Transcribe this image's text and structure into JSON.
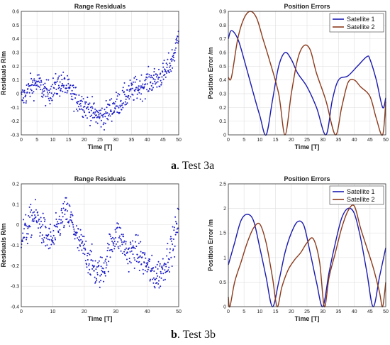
{
  "chart_data": [
    {
      "type": "scatter",
      "title": "Range Residuals",
      "xlabel": "Time [T]",
      "ylabel": "Residuals R/m",
      "xlim": [
        0,
        50
      ],
      "ylim": [
        -0.3,
        0.6
      ],
      "xticks": [
        "0",
        "5",
        "10",
        "15",
        "20",
        "25",
        "30",
        "35",
        "40",
        "45",
        "50"
      ],
      "yticks": [
        "-0.3",
        "-0.2",
        "-0.1",
        "0",
        "0.1",
        "0.2",
        "0.3",
        "0.4",
        "0.5",
        "0.6"
      ],
      "grid": true,
      "marker_color": "#1b1bc8",
      "trend": {
        "x": [
          0,
          3,
          5,
          8,
          11,
          13,
          15,
          18,
          20,
          22,
          24,
          26,
          28,
          30,
          32,
          34,
          36,
          38,
          40,
          42,
          44,
          46,
          48,
          49.5,
          50
        ],
        "y": [
          -0.04,
          0.05,
          0.08,
          0.0,
          0.05,
          0.08,
          0.03,
          -0.05,
          -0.08,
          -0.12,
          -0.16,
          -0.17,
          -0.12,
          -0.08,
          -0.05,
          0.0,
          0.03,
          0.05,
          0.08,
          0.1,
          0.12,
          0.16,
          0.25,
          0.37,
          0.45
        ]
      },
      "noise": 0.045
    },
    {
      "type": "line",
      "title": "Position Errors",
      "xlabel": "Time [T]",
      "ylabel": "Position Error /m",
      "xlim": [
        0,
        50
      ],
      "ylim": [
        0,
        0.9
      ],
      "xticks": [
        "0",
        "5",
        "10",
        "15",
        "20",
        "25",
        "30",
        "35",
        "40",
        "45",
        "50"
      ],
      "yticks": [
        "0",
        "0.1",
        "0.2",
        "0.3",
        "0.4",
        "0.5",
        "0.6",
        "0.7",
        "0.8",
        "0.9"
      ],
      "grid": true,
      "legend_position": "top-right",
      "series": [
        {
          "name": "Satellite 1",
          "color": "#1a1ab0",
          "x": [
            0,
            1,
            3,
            5,
            8,
            10,
            12,
            14,
            16,
            18,
            20,
            22,
            25,
            28,
            31,
            33,
            35,
            38,
            41,
            44,
            45,
            47,
            49,
            50
          ],
          "y": [
            0.7,
            0.76,
            0.7,
            0.55,
            0.3,
            0.14,
            0.0,
            0.25,
            0.5,
            0.6,
            0.55,
            0.45,
            0.35,
            0.2,
            0.0,
            0.25,
            0.4,
            0.43,
            0.5,
            0.57,
            0.55,
            0.4,
            0.2,
            0.27
          ]
        },
        {
          "name": "Satellite 2",
          "color": "#8c3b1c",
          "x": [
            0,
            1,
            3,
            5,
            7,
            9,
            11,
            13,
            16,
            18,
            20,
            22,
            24,
            26,
            28,
            31,
            34,
            36,
            38,
            40,
            42,
            45,
            47,
            49,
            50
          ],
          "y": [
            0.42,
            0.42,
            0.7,
            0.85,
            0.9,
            0.85,
            0.7,
            0.55,
            0.3,
            0.0,
            0.3,
            0.55,
            0.65,
            0.62,
            0.45,
            0.25,
            0.0,
            0.2,
            0.38,
            0.4,
            0.35,
            0.28,
            0.12,
            0.0,
            0.24
          ]
        }
      ]
    },
    {
      "type": "scatter",
      "title": "Range Residuals",
      "xlabel": "Time [T]",
      "ylabel": "Residuals R/m",
      "xlim": [
        0,
        50
      ],
      "ylim": [
        -0.4,
        0.2
      ],
      "xticks": [
        "0",
        "10",
        "20",
        "30",
        "40",
        "50"
      ],
      "yticks": [
        "-0.4",
        "-0.3",
        "-0.2",
        "-0.1",
        "0",
        "0.1",
        "0.2"
      ],
      "grid": true,
      "marker_color": "#1b1bc8",
      "trend": {
        "x": [
          0,
          2,
          4,
          6,
          8,
          10,
          12,
          14,
          16,
          18,
          20,
          22,
          24,
          26,
          28,
          30,
          32,
          34,
          36,
          38,
          40,
          42,
          44,
          46,
          48,
          50
        ],
        "y": [
          -0.05,
          -0.02,
          0.05,
          0.0,
          -0.06,
          -0.08,
          0.0,
          0.06,
          0.02,
          -0.08,
          -0.12,
          -0.18,
          -0.24,
          -0.22,
          -0.12,
          -0.04,
          -0.08,
          -0.15,
          -0.12,
          -0.16,
          -0.2,
          -0.25,
          -0.24,
          -0.18,
          -0.1,
          0.02
        ]
      },
      "noise": 0.04
    },
    {
      "type": "line",
      "title": "Position Errors",
      "xlabel": "Time [T]",
      "ylabel": "Position Error /m",
      "xlim": [
        0,
        50
      ],
      "ylim": [
        0,
        2.5
      ],
      "xticks": [
        "0",
        "5",
        "10",
        "15",
        "20",
        "25",
        "30",
        "35",
        "40",
        "45",
        "50"
      ],
      "yticks": [
        "0",
        "0.5",
        "1",
        "1.5",
        "2",
        "2.5"
      ],
      "grid": true,
      "legend_position": "top-right",
      "series": [
        {
          "name": "Satellite 1",
          "color": "#1a1ab0",
          "x": [
            0,
            2,
            4,
            6,
            8,
            10,
            12,
            14,
            16,
            18,
            20,
            22,
            24,
            26,
            28,
            30,
            32,
            34,
            36,
            38,
            40,
            42,
            44,
            46,
            48,
            50
          ],
          "y": [
            0.85,
            1.3,
            1.75,
            1.88,
            1.75,
            1.2,
            0.6,
            0.0,
            0.5,
            1.1,
            1.5,
            1.73,
            1.65,
            1.1,
            0.5,
            0.0,
            0.7,
            1.3,
            1.8,
            2.0,
            1.9,
            1.4,
            0.7,
            0.0,
            0.6,
            1.2
          ]
        },
        {
          "name": "Satellite 2",
          "color": "#8c3b1c",
          "x": [
            0,
            0.5,
            2,
            4,
            6,
            8,
            10,
            12,
            14,
            15.5,
            17,
            19,
            21,
            23,
            25,
            27,
            29,
            30.5,
            32,
            34,
            36,
            38,
            40,
            42,
            44,
            46,
            48,
            49,
            50
          ],
          "y": [
            0.2,
            0.0,
            0.5,
            0.9,
            1.3,
            1.6,
            1.68,
            1.3,
            0.6,
            0.0,
            0.4,
            0.75,
            0.95,
            1.1,
            1.3,
            1.38,
            0.9,
            0.0,
            0.6,
            1.1,
            1.6,
            1.95,
            2.05,
            1.6,
            1.2,
            0.8,
            0.3,
            0.0,
            0.5
          ]
        }
      ]
    }
  ],
  "captions": [
    {
      "label": "a",
      "text": ". Test 3a"
    },
    {
      "label": "b",
      "text": ". Test 3b"
    }
  ]
}
